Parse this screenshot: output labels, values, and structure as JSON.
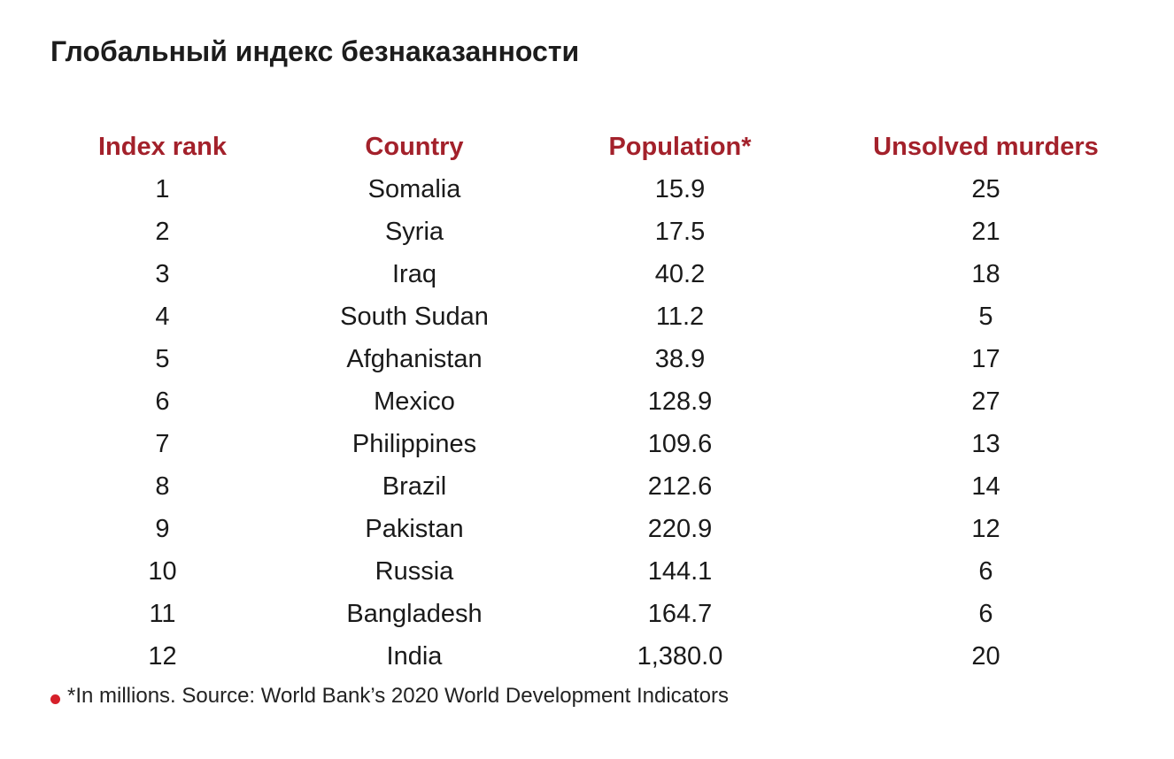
{
  "title": "Глобальный индекс безнаказанности",
  "columns": [
    "Index rank",
    "Country",
    "Population*",
    "Unsolved murders"
  ],
  "rows": [
    [
      "1",
      "Somalia",
      "15.9",
      "25"
    ],
    [
      "2",
      "Syria",
      "17.5",
      "21"
    ],
    [
      "3",
      "Iraq",
      "40.2",
      "18"
    ],
    [
      "4",
      "South Sudan",
      "11.2",
      "5"
    ],
    [
      "5",
      "Afghanistan",
      "38.9",
      "17"
    ],
    [
      "6",
      "Mexico",
      "128.9",
      "27"
    ],
    [
      "7",
      "Philippines",
      "109.6",
      "13"
    ],
    [
      "8",
      "Brazil",
      "212.6",
      "14"
    ],
    [
      "9",
      "Pakistan",
      "220.9",
      "12"
    ],
    [
      "10",
      "Russia",
      "144.1",
      "6"
    ],
    [
      "11",
      "Bangladesh",
      "164.7",
      "6"
    ],
    [
      "12",
      "India",
      "1,380.0",
      "20"
    ]
  ],
  "footnote": "*In millions. Source: World Bank’s 2020 World Development Indicators",
  "colors": {
    "header": "#a3212b",
    "bullet": "#d6202a"
  }
}
